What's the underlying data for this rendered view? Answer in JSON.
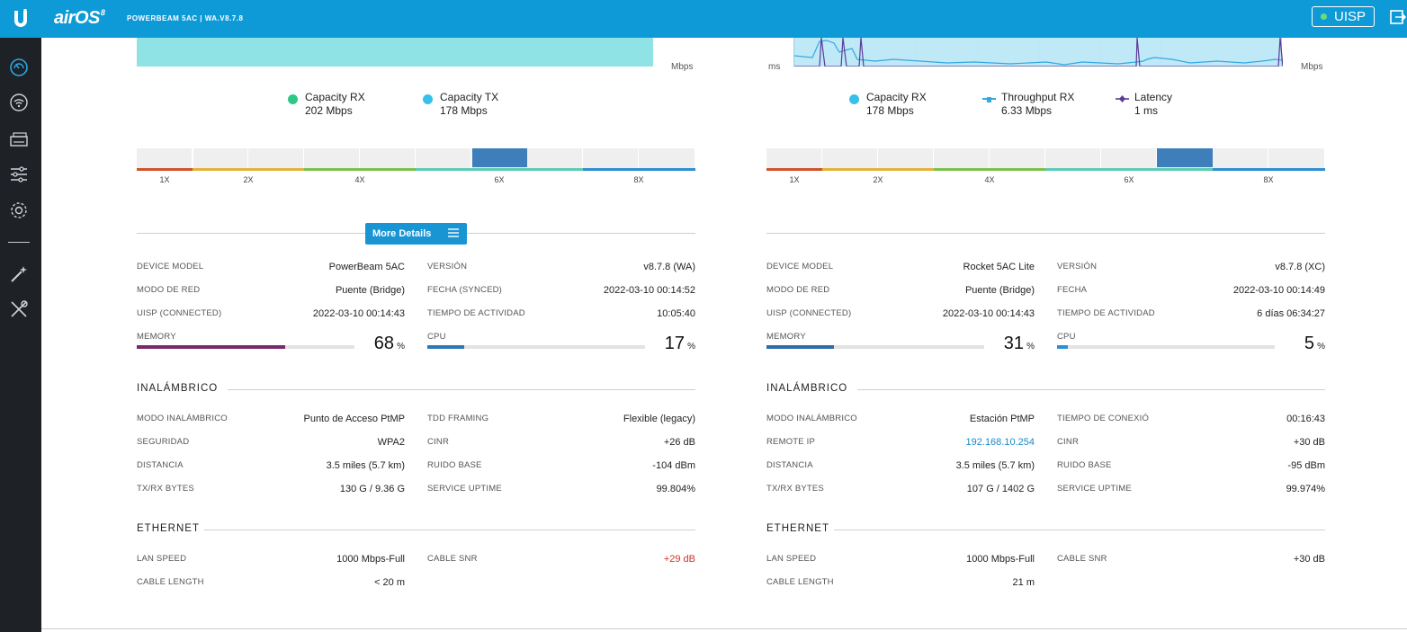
{
  "header": {
    "brand": "airOS",
    "brand_version": "8",
    "device_info": "POWERBEAM 5AC | WA.V8.7.8",
    "uisp_label": "UISP"
  },
  "left_panel": {
    "chart_unit_right": "Mbps",
    "legend": [
      {
        "label": "Capacity RX",
        "value": "202 Mbps",
        "color": "#2fc785"
      },
      {
        "label": "Capacity TX",
        "value": "178 Mbps",
        "color": "#35c1ea"
      }
    ],
    "modulation": {
      "labels": [
        "1X",
        "2X",
        "4X",
        "6X",
        "8X"
      ]
    },
    "more_details_label": "More Details",
    "info": [
      {
        "key": "DEVICE MODEL",
        "value": "PowerBeam 5AC"
      },
      {
        "key": "MODO DE RED",
        "value": "Puente (Bridge)"
      },
      {
        "key": "UISP (CONNECTED)",
        "value": "2022-03-10 00:14:43"
      },
      {
        "key": "VERSIÓN",
        "value": "v8.7.8 (WA)"
      },
      {
        "key": "FECHA (SYNCED)",
        "value": "2022-03-10 00:14:52"
      },
      {
        "key": "TIEMPO DE ACTIVIDAD",
        "value": "10:05:40"
      }
    ],
    "memory": {
      "label": "MEMORY",
      "value": "68",
      "unit": "%",
      "percent": 68,
      "color": "#7a2a6a"
    },
    "cpu": {
      "label": "CPU",
      "value": "17",
      "unit": "%",
      "percent": 17,
      "color": "#2c77b8"
    },
    "wireless_title": "INALÁMBRICO",
    "wireless": [
      {
        "key": "MODO INALÁMBRICO",
        "value": "Punto de Acceso PtMP"
      },
      {
        "key": "SEGURIDAD",
        "value": "WPA2"
      },
      {
        "key": "DISTANCIA",
        "value": "3.5 miles (5.7 km)"
      },
      {
        "key": "TX/RX BYTES",
        "value": "130 G / 9.36 G"
      },
      {
        "key": "TDD FRAMING",
        "value": "Flexible (legacy)"
      },
      {
        "key": "CINR",
        "value": "+26 dB"
      },
      {
        "key": "RUIDO BASE",
        "value": "-104 dBm"
      },
      {
        "key": "SERVICE UPTIME",
        "value": "99.804%"
      }
    ],
    "ethernet_title": "ETHERNET",
    "ethernet": [
      {
        "key": "LAN SPEED",
        "value": "1000 Mbps-Full"
      },
      {
        "key": "CABLE LENGTH",
        "value": "< 20 m"
      },
      {
        "key": "CABLE SNR",
        "value": "+29 dB"
      }
    ]
  },
  "right_panel": {
    "chart_unit_left": "ms",
    "chart_unit_right": "Mbps",
    "legend": [
      {
        "label": "Capacity RX",
        "value": "178 Mbps",
        "color": "#35c1ea"
      },
      {
        "label": "Throughput RX",
        "value": "6.33 Mbps",
        "color": "#35a8e0"
      },
      {
        "label": "Latency",
        "value": "1 ms",
        "color": "#5b3b9a"
      }
    ],
    "modulation": {
      "labels": [
        "1X",
        "2X",
        "4X",
        "6X",
        "8X"
      ]
    },
    "info": [
      {
        "key": "DEVICE MODEL",
        "value": "Rocket 5AC Lite"
      },
      {
        "key": "MODO DE RED",
        "value": "Puente (Bridge)"
      },
      {
        "key": "UISP (CONNECTED)",
        "value": "2022-03-10 00:14:43"
      },
      {
        "key": "VERSIÓN",
        "value": "v8.7.8 (XC)"
      },
      {
        "key": "FECHA",
        "value": "2022-03-10 00:14:49"
      },
      {
        "key": "TIEMPO DE ACTIVIDAD",
        "value": "6 días 06:34:27"
      }
    ],
    "memory": {
      "label": "MEMORY",
      "value": "31",
      "unit": "%",
      "percent": 31,
      "color": "#2e6da8"
    },
    "cpu": {
      "label": "CPU",
      "value": "5",
      "unit": "%",
      "percent": 5,
      "color": "#2c8fd6"
    },
    "wireless_title": "INALÁMBRICO",
    "wireless": [
      {
        "key": "MODO INALÁMBRICO",
        "value": "Estación PtMP"
      },
      {
        "key": "REMOTE IP",
        "value": "192.168.10.254"
      },
      {
        "key": "DISTANCIA",
        "value": "3.5 miles (5.7 km)"
      },
      {
        "key": "TX/RX BYTES",
        "value": "107 G / 1402 G"
      },
      {
        "key": "TIEMPO DE CONEXIÓ",
        "value": "00:16:43"
      },
      {
        "key": "CINR",
        "value": "+30 dB"
      },
      {
        "key": "RUIDO BASE",
        "value": "-95 dBm"
      },
      {
        "key": "SERVICE UPTIME",
        "value": "99.974%"
      }
    ],
    "ethernet_title": "ETHERNET",
    "ethernet": [
      {
        "key": "LAN SPEED",
        "value": "1000 Mbps-Full"
      },
      {
        "key": "CABLE LENGTH",
        "value": "21 m"
      },
      {
        "key": "CABLE SNR",
        "value": "+30 dB"
      }
    ]
  },
  "sidebar": {
    "items": [
      {
        "icon": "dashboard-icon"
      },
      {
        "icon": "wireless-icon"
      },
      {
        "icon": "network-icon"
      },
      {
        "icon": "services-icon"
      },
      {
        "icon": "settings-icon"
      },
      {
        "icon": "wizard-icon"
      },
      {
        "icon": "tools-icon"
      }
    ]
  }
}
